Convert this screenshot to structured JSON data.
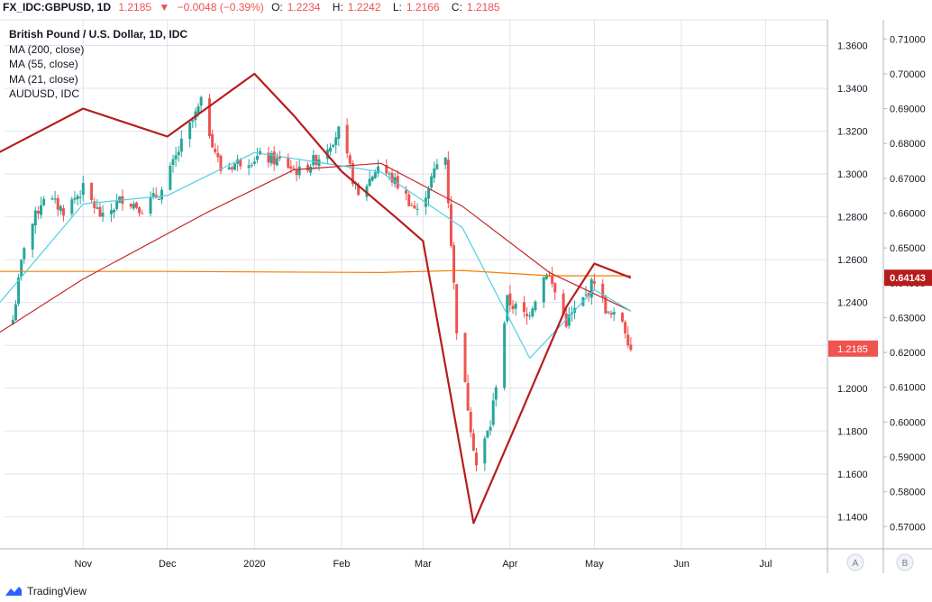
{
  "header": {
    "symbol": "FX_IDC:GBPUSD, 1D",
    "last": "1.2185",
    "change_arrow": "▼",
    "change": "−0.0048 (−0.39%)",
    "o_label": "O:",
    "o_value": "1.2234",
    "h_label": "H:",
    "h_value": "1.2242",
    "l_label": "L:",
    "l_value": "1.2166",
    "c_label": "C:",
    "c_value": "1.2185"
  },
  "legend": {
    "title": "British Pound / U.S. Dollar, 1D, IDC",
    "ma200": "MA (200, close)",
    "ma55": "MA (55, close)",
    "ma21": "MA (21, close)",
    "audusd": "AUDUSD, IDC"
  },
  "axis_buttons": {
    "a": "A",
    "b": "B"
  },
  "footer": {
    "brand": "TradingView"
  },
  "colors": {
    "up": "#26a69a",
    "down": "#ef5350",
    "ma200": "#f57c00",
    "ma55": "#c62828",
    "ma21": "#4dd0e1",
    "audusd": "#b71c1c",
    "grid": "#e0e3eb"
  },
  "chart_data": {
    "type": "line",
    "title": "British Pound / U.S. Dollar, 1D, IDC",
    "x_ticks": [
      "Nov",
      "Dec",
      "2020",
      "Feb",
      "Mar",
      "Apr",
      "May",
      "Jun",
      "Jul"
    ],
    "y_left_ticks": [
      "1.3600",
      "1.3400",
      "1.3200",
      "1.3000",
      "1.2800",
      "1.2600",
      "1.2400",
      "1.2200",
      "1.2000",
      "1.1800",
      "1.1600",
      "1.1400"
    ],
    "y_right_ticks": [
      "0.71000",
      "0.70000",
      "0.69000",
      "0.68000",
      "0.67000",
      "0.66000",
      "0.65000",
      "0.64000",
      "0.63000",
      "0.62000",
      "0.61000",
      "0.60000",
      "0.59000",
      "0.58000",
      "0.57000"
    ],
    "y_left_range": [
      1.125,
      1.372
    ],
    "y_right_range": [
      0.5636,
      0.7155
    ],
    "last_gbpusd_label": "1.2185",
    "last_audusd_label": "0.64143",
    "series": [
      {
        "name": "British Pound / U.S. Dollar, 1D, IDC",
        "axis": "left",
        "values_approx": [
          [
            "2019-10-07",
            1.232
          ],
          [
            "2019-10-11",
            1.267
          ],
          [
            "2019-10-18",
            1.29
          ],
          [
            "2019-10-25",
            1.283
          ],
          [
            "2019-11-01",
            1.293
          ],
          [
            "2019-11-08",
            1.279
          ],
          [
            "2019-11-15",
            1.289
          ],
          [
            "2019-11-22",
            1.284
          ],
          [
            "2019-11-29",
            1.292
          ],
          [
            "2019-12-06",
            1.314
          ],
          [
            "2019-12-13",
            1.333
          ],
          [
            "2019-12-20",
            1.302
          ],
          [
            "2019-12-27",
            1.306
          ],
          [
            "2020-01-03",
            1.308
          ],
          [
            "2020-01-10",
            1.306
          ],
          [
            "2020-01-17",
            1.301
          ],
          [
            "2020-01-24",
            1.308
          ],
          [
            "2020-01-31",
            1.32
          ],
          [
            "2020-02-07",
            1.289
          ],
          [
            "2020-02-14",
            1.304
          ],
          [
            "2020-02-21",
            1.295
          ],
          [
            "2020-02-28",
            1.282
          ],
          [
            "2020-03-06",
            1.304
          ],
          [
            "2020-03-09",
            1.308
          ],
          [
            "2020-03-13",
            1.228
          ],
          [
            "2020-03-20",
            1.164
          ],
          [
            "2020-03-25",
            1.183
          ],
          [
            "2020-03-31",
            1.241
          ],
          [
            "2020-04-07",
            1.233
          ],
          [
            "2020-04-14",
            1.255
          ],
          [
            "2020-04-21",
            1.231
          ],
          [
            "2020-04-28",
            1.243
          ],
          [
            "2020-05-01",
            1.251
          ],
          [
            "2020-05-06",
            1.234
          ],
          [
            "2020-05-11",
            1.232
          ],
          [
            "2020-05-14",
            1.2185
          ]
        ]
      },
      {
        "name": "MA (200, close)",
        "axis": "left",
        "values_approx": [
          [
            "2019-10-01",
            1.2545
          ],
          [
            "2019-12-01",
            1.2545
          ],
          [
            "2020-02-15",
            1.254
          ],
          [
            "2020-03-15",
            1.255
          ],
          [
            "2020-04-15",
            1.2525
          ],
          [
            "2020-05-14",
            1.2525
          ]
        ]
      },
      {
        "name": "MA (55, close)",
        "axis": "left",
        "values_approx": [
          [
            "2019-10-01",
            1.225
          ],
          [
            "2019-11-01",
            1.251
          ],
          [
            "2019-12-15",
            1.282
          ],
          [
            "2020-01-15",
            1.302
          ],
          [
            "2020-02-15",
            1.305
          ],
          [
            "2020-03-15",
            1.285
          ],
          [
            "2020-04-15",
            1.254
          ],
          [
            "2020-05-14",
            1.236
          ]
        ]
      },
      {
        "name": "MA (21, close)",
        "axis": "left",
        "values_approx": [
          [
            "2019-10-01",
            1.238
          ],
          [
            "2019-11-01",
            1.286
          ],
          [
            "2019-12-01",
            1.29
          ],
          [
            "2020-01-01",
            1.31
          ],
          [
            "2020-02-15",
            1.301
          ],
          [
            "2020-03-15",
            1.275
          ],
          [
            "2020-04-08",
            1.214
          ],
          [
            "2020-05-01",
            1.246
          ],
          [
            "2020-05-14",
            1.236
          ]
        ]
      },
      {
        "name": "AUDUSD, IDC",
        "axis": "right",
        "values_approx": [
          [
            "2019-10-01",
            0.677
          ],
          [
            "2019-11-01",
            0.69
          ],
          [
            "2019-12-01",
            0.682
          ],
          [
            "2020-01-01",
            0.7
          ],
          [
            "2020-01-15",
            0.688
          ],
          [
            "2020-02-01",
            0.672
          ],
          [
            "2020-02-20",
            0.659
          ],
          [
            "2020-03-01",
            0.652
          ],
          [
            "2020-03-19",
            0.571
          ],
          [
            "2020-04-03",
            0.599
          ],
          [
            "2020-04-21",
            0.633
          ],
          [
            "2020-05-01",
            0.6455
          ],
          [
            "2020-05-14",
            0.64143
          ]
        ]
      }
    ]
  }
}
